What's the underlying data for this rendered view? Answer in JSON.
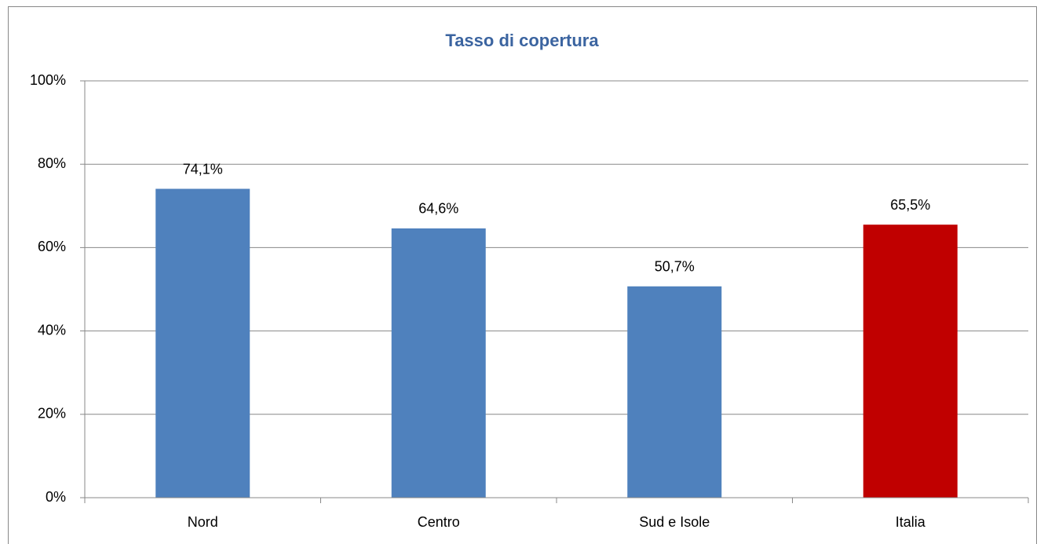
{
  "chart_data": {
    "type": "bar",
    "title": "Tasso di copertura",
    "categories": [
      "Nord",
      "Centro",
      "Sud e Isole",
      "Italia"
    ],
    "values": [
      74.1,
      64.6,
      50.7,
      65.5
    ],
    "value_labels": [
      "74,1%",
      "64,6%",
      "50,7%",
      "65,5%"
    ],
    "colors": [
      "#4f81bd",
      "#4f81bd",
      "#4f81bd",
      "#c00000"
    ],
    "ylim": [
      0,
      100
    ],
    "yticks": [
      {
        "value": 0,
        "label": "0%"
      },
      {
        "value": 20,
        "label": "20%"
      },
      {
        "value": 40,
        "label": "40%"
      },
      {
        "value": 60,
        "label": "60%"
      },
      {
        "value": 80,
        "label": "80%"
      },
      {
        "value": 100,
        "label": "100%"
      }
    ],
    "grid": true
  }
}
